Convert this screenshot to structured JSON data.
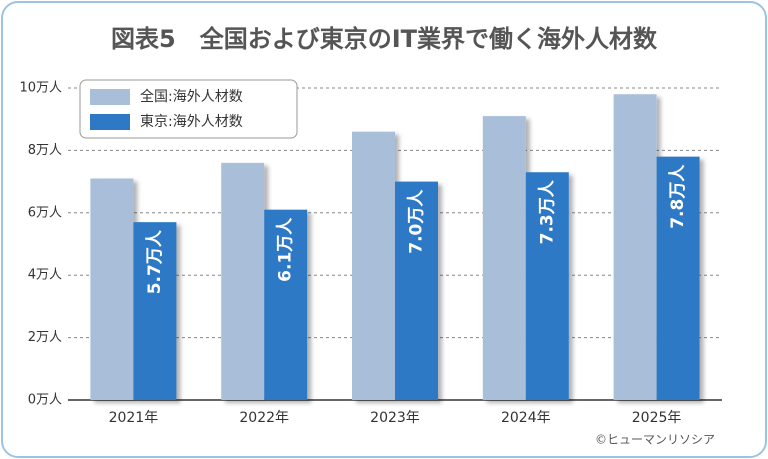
{
  "chart_data": {
    "type": "bar",
    "title": "図表5　全国および東京のIT業界で働く海外人材数",
    "categories": [
      "2021年",
      "2022年",
      "2023年",
      "2024年",
      "2025年"
    ],
    "series": [
      {
        "name": "全国:海外人材数",
        "color": "#a9bfd9",
        "values": [
          7.1,
          7.6,
          8.6,
          9.1,
          9.8
        ]
      },
      {
        "name": "東京:海外人材数",
        "color": "#2d79c5",
        "values": [
          5.7,
          6.1,
          7.0,
          7.3,
          7.8
        ],
        "value_labels": [
          "5.7万人",
          "6.1万人",
          "7.0万人",
          "7.3万人",
          "7.8万人"
        ]
      }
    ],
    "ylim": [
      0,
      10
    ],
    "yticks": [
      {
        "value": 0,
        "label": "0万人"
      },
      {
        "value": 2,
        "label": "2万人"
      },
      {
        "value": 4,
        "label": "4万人"
      },
      {
        "value": 6,
        "label": "6万人"
      },
      {
        "value": 8,
        "label": "8万人"
      },
      {
        "value": 10,
        "label": "10万人"
      }
    ],
    "grid": true,
    "legend": "upper-left",
    "source": "©ヒューマンリソシア"
  }
}
